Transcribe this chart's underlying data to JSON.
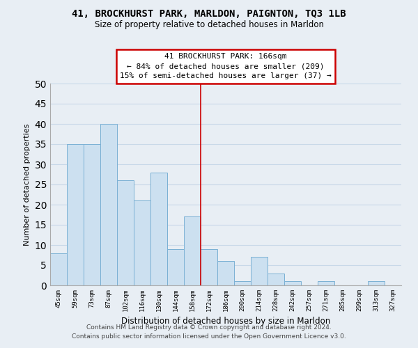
{
  "title": "41, BROCKHURST PARK, MARLDON, PAIGNTON, TQ3 1LB",
  "subtitle": "Size of property relative to detached houses in Marldon",
  "xlabel": "Distribution of detached houses by size in Marldon",
  "ylabel": "Number of detached properties",
  "bin_labels": [
    "45sqm",
    "59sqm",
    "73sqm",
    "87sqm",
    "102sqm",
    "116sqm",
    "130sqm",
    "144sqm",
    "158sqm",
    "172sqm",
    "186sqm",
    "200sqm",
    "214sqm",
    "228sqm",
    "242sqm",
    "257sqm",
    "271sqm",
    "285sqm",
    "299sqm",
    "313sqm",
    "327sqm"
  ],
  "bar_heights": [
    8,
    35,
    35,
    40,
    26,
    21,
    28,
    9,
    17,
    9,
    6,
    1,
    7,
    3,
    1,
    0,
    1,
    0,
    0,
    1,
    0
  ],
  "bar_color": "#cce0f0",
  "bar_edge_color": "#7ab0d4",
  "annotation_title": "41 BROCKHURST PARK: 166sqm",
  "annotation_line1": "← 84% of detached houses are smaller (209)",
  "annotation_line2": "15% of semi-detached houses are larger (37) →",
  "annotation_box_color": "#ffffff",
  "annotation_border_color": "#cc0000",
  "vline_color": "#cc0000",
  "vline_x": 8.5,
  "ylim": [
    0,
    50
  ],
  "yticks": [
    0,
    5,
    10,
    15,
    20,
    25,
    30,
    35,
    40,
    45,
    50
  ],
  "footer_line1": "Contains HM Land Registry data © Crown copyright and database right 2024.",
  "footer_line2": "Contains public sector information licensed under the Open Government Licence v3.0.",
  "bg_color": "#e8eef4",
  "grid_color": "#c8d8e8"
}
